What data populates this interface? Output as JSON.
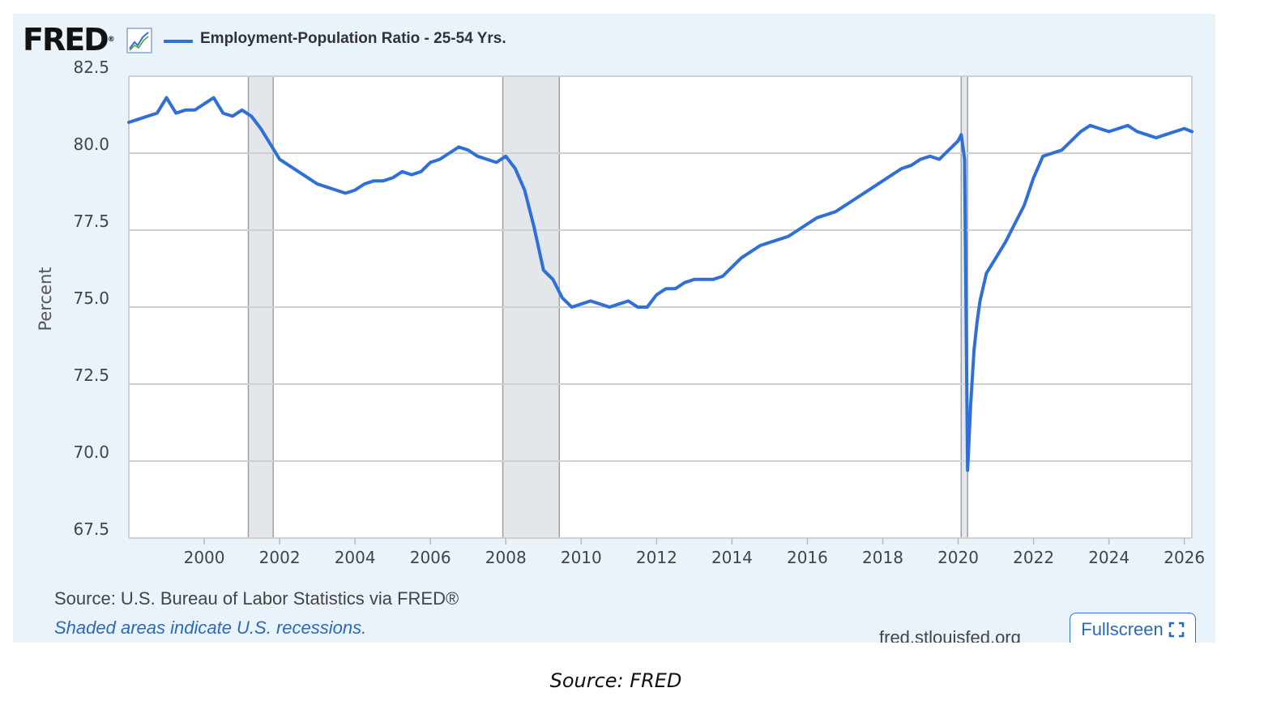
{
  "header": {
    "logo_text": "FRED",
    "logo_mark": "®",
    "graph_icon": "line-graph-icon",
    "series_title": "Employment-Population Ratio - 25-54 Yrs."
  },
  "footer": {
    "source": "Source: U.S. Bureau of Labor Statistics via FRED®",
    "shaded_note": "Shaded areas indicate U.S. recessions.",
    "site": "fred.stlouisfed.org",
    "fullscreen_label": "Fullscreen",
    "fullscreen_icon": "expand-icon"
  },
  "caption": "Source: FRED",
  "colors": {
    "line": "#2f6fd6",
    "recession_shade": "#e3e6ea",
    "panel_bg": "#eaf2fa",
    "link": "#2a6bb8"
  },
  "chart_data": {
    "type": "line",
    "title": "",
    "xlabel": "",
    "ylabel": "Percent",
    "xlim": [
      1998.0,
      2026.2
    ],
    "ylim": [
      67.5,
      82.5
    ],
    "grid": true,
    "legend_position": "top",
    "x_ticks": [
      "2000",
      "2002",
      "2004",
      "2006",
      "2008",
      "2010",
      "2012",
      "2014",
      "2016",
      "2018",
      "2020",
      "2022",
      "2024",
      "2026"
    ],
    "y_ticks": [
      "67.5",
      "70.0",
      "72.5",
      "75.0",
      "77.5",
      "80.0",
      "82.5"
    ],
    "recessions": [
      [
        2001.17,
        2001.83
      ],
      [
        2007.92,
        2009.42
      ],
      [
        2020.08,
        2020.25
      ]
    ],
    "series": [
      {
        "name": "Employment-Population Ratio - 25-54 Yrs.",
        "x": [
          1998.0,
          1998.25,
          1998.5,
          1998.75,
          1999.0,
          1999.25,
          1999.5,
          1999.75,
          2000.0,
          2000.25,
          2000.5,
          2000.75,
          2001.0,
          2001.25,
          2001.5,
          2001.75,
          2002.0,
          2002.25,
          2002.5,
          2002.75,
          2003.0,
          2003.25,
          2003.5,
          2003.75,
          2004.0,
          2004.25,
          2004.5,
          2004.75,
          2005.0,
          2005.25,
          2005.5,
          2005.75,
          2006.0,
          2006.25,
          2006.5,
          2006.75,
          2007.0,
          2007.25,
          2007.5,
          2007.75,
          2008.0,
          2008.25,
          2008.5,
          2008.75,
          2009.0,
          2009.25,
          2009.5,
          2009.75,
          2010.0,
          2010.25,
          2010.5,
          2010.75,
          2011.0,
          2011.25,
          2011.5,
          2011.75,
          2012.0,
          2012.25,
          2012.5,
          2012.75,
          2013.0,
          2013.25,
          2013.5,
          2013.75,
          2014.0,
          2014.25,
          2014.5,
          2014.75,
          2015.0,
          2015.25,
          2015.5,
          2015.75,
          2016.0,
          2016.25,
          2016.5,
          2016.75,
          2017.0,
          2017.25,
          2017.5,
          2017.75,
          2018.0,
          2018.25,
          2018.5,
          2018.75,
          2019.0,
          2019.25,
          2019.5,
          2019.75,
          2020.0,
          2020.08,
          2020.17,
          2020.25,
          2020.33,
          2020.42,
          2020.5,
          2020.58,
          2020.75,
          2021.0,
          2021.25,
          2021.5,
          2021.75,
          2022.0,
          2022.25,
          2022.5,
          2022.75,
          2023.0,
          2023.25,
          2023.5,
          2023.75,
          2024.0,
          2024.25,
          2024.5,
          2024.75,
          2025.0,
          2025.25,
          2025.5,
          2025.75,
          2026.0,
          2026.2
        ],
        "y": [
          81.0,
          81.1,
          81.2,
          81.3,
          81.8,
          81.3,
          81.4,
          81.4,
          81.6,
          81.8,
          81.3,
          81.2,
          81.4,
          81.2,
          80.8,
          80.3,
          79.8,
          79.6,
          79.4,
          79.2,
          79.0,
          78.9,
          78.8,
          78.7,
          78.8,
          79.0,
          79.1,
          79.1,
          79.2,
          79.4,
          79.3,
          79.4,
          79.7,
          79.8,
          80.0,
          80.2,
          80.1,
          79.9,
          79.8,
          79.7,
          79.9,
          79.5,
          78.8,
          77.6,
          76.2,
          75.9,
          75.3,
          75.0,
          75.1,
          75.2,
          75.1,
          75.0,
          75.1,
          75.2,
          75.0,
          75.0,
          75.4,
          75.6,
          75.6,
          75.8,
          75.9,
          75.9,
          75.9,
          76.0,
          76.3,
          76.6,
          76.8,
          77.0,
          77.1,
          77.2,
          77.3,
          77.5,
          77.7,
          77.9,
          78.0,
          78.1,
          78.3,
          78.5,
          78.7,
          78.9,
          79.1,
          79.3,
          79.5,
          79.6,
          79.8,
          79.9,
          79.8,
          80.1,
          80.4,
          80.6,
          79.8,
          69.7,
          71.8,
          73.6,
          74.5,
          75.2,
          76.1,
          76.6,
          77.1,
          77.7,
          78.3,
          79.2,
          79.9,
          80.0,
          80.1,
          80.4,
          80.7,
          80.9,
          80.8,
          80.7,
          80.8,
          80.9,
          80.7,
          80.6,
          80.5,
          80.6,
          80.7,
          80.8,
          80.7
        ]
      }
    ]
  }
}
